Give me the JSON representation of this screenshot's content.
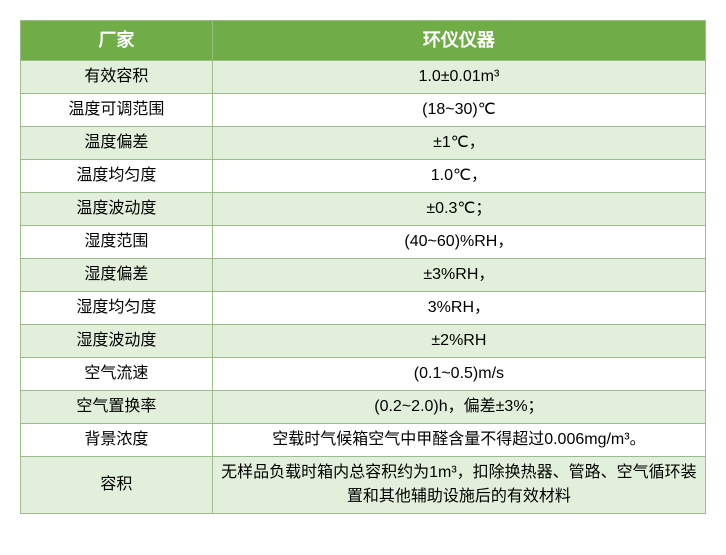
{
  "table": {
    "type": "table",
    "header_bg": "#70ad47",
    "header_fg": "#ffffff",
    "stripe_bg": "#e2efda",
    "plain_bg": "#ffffff",
    "border_color": "#9bbb8b",
    "header_fontsize": 18,
    "cell_fontsize": 16,
    "columns": [
      {
        "label": "厂家",
        "width_pct": 28
      },
      {
        "label": "环仪仪器",
        "width_pct": 72
      }
    ],
    "rows": [
      {
        "label": "有效容积",
        "value": "1.0±0.01m³",
        "stripe": true
      },
      {
        "label": "温度可调范围",
        "value": "(18~30)℃",
        "stripe": false
      },
      {
        "label": "温度偏差",
        "value": "±1℃，",
        "stripe": true
      },
      {
        "label": "温度均匀度",
        "value": "1.0℃，",
        "stripe": false
      },
      {
        "label": "温度波动度",
        "value": "±0.3℃；",
        "stripe": true
      },
      {
        "label": "湿度范围",
        "value": "(40~60)%RH，",
        "stripe": false
      },
      {
        "label": "湿度偏差",
        "value": "±3%RH，",
        "stripe": true
      },
      {
        "label": "湿度均匀度",
        "value": "3%RH，",
        "stripe": false
      },
      {
        "label": "湿度波动度",
        "value": "±2%RH",
        "stripe": true
      },
      {
        "label": "空气流速",
        "value": "(0.1~0.5)m/s",
        "stripe": false
      },
      {
        "label": "空气置换率",
        "value": "(0.2~2.0)h，偏差±3%；",
        "stripe": true
      },
      {
        "label": "背景浓度",
        "value": "空载时气候箱空气中甲醛含量不得超过0.006mg/m³。",
        "stripe": false
      },
      {
        "label": "容积",
        "value": "无样品负载时箱内总容积约为1m³，扣除换热器、管路、空气循环装置和其他辅助设施后的有效材料",
        "stripe": true
      }
    ]
  }
}
